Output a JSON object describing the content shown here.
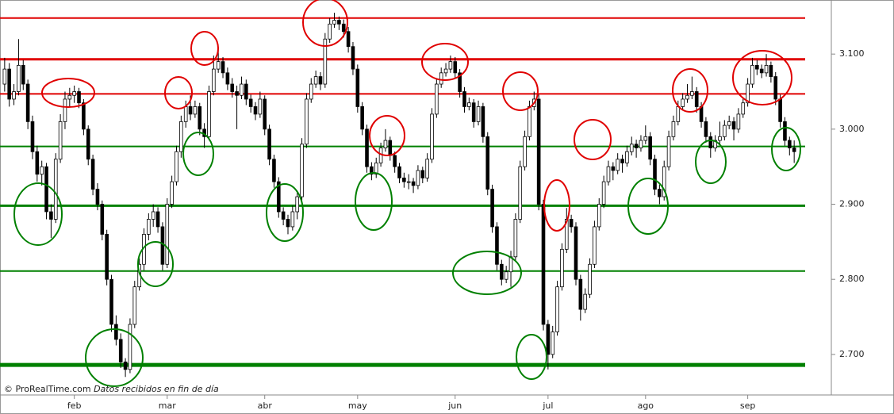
{
  "chart_data": {
    "type": "candlestick",
    "source": "© ProRealTime.com",
    "note": "Datos recibidos en fin de día",
    "xlim": [
      -1,
      178
    ],
    "xticks": [
      {
        "value": 15,
        "label": "feb"
      },
      {
        "value": 35,
        "label": "mar"
      },
      {
        "value": 56,
        "label": "abr"
      },
      {
        "value": 76,
        "label": "may"
      },
      {
        "value": 97,
        "label": "jun"
      },
      {
        "value": 117,
        "label": "jul"
      },
      {
        "value": 138,
        "label": "ago"
      },
      {
        "value": 160,
        "label": "sep"
      }
    ],
    "ylim": [
      2646,
      3172
    ],
    "yticks": [
      {
        "value": 2700,
        "label": "2.700"
      },
      {
        "value": 2800,
        "label": "2.800"
      },
      {
        "value": 2900,
        "label": "2.900"
      },
      {
        "value": 3000,
        "label": "3.000"
      },
      {
        "value": 3100,
        "label": "3.100"
      }
    ],
    "up_color": "#ffffff",
    "down_color": "#000000",
    "levels": [
      {
        "value": 3148,
        "color": "#e00000",
        "width": 2
      },
      {
        "value": 3093,
        "color": "#e00000",
        "width": 3
      },
      {
        "value": 3047,
        "color": "#e00000",
        "width": 2
      },
      {
        "value": 2977,
        "color": "#008000",
        "width": 2
      },
      {
        "value": 2898,
        "color": "#008000",
        "width": 3
      },
      {
        "value": 2811,
        "color": "#008000",
        "width": 2
      },
      {
        "value": 2686,
        "color": "#008000",
        "width": 5
      }
    ],
    "candles": [
      [
        3060,
        3095,
        3050,
        3080
      ],
      [
        3080,
        3088,
        3030,
        3040
      ],
      [
        3040,
        3060,
        3032,
        3050
      ],
      [
        3050,
        3120,
        3045,
        3085
      ],
      [
        3085,
        3092,
        3052,
        3060
      ],
      [
        3060,
        3066,
        3000,
        3010
      ],
      [
        3010,
        3018,
        2960,
        2970
      ],
      [
        2970,
        2978,
        2930,
        2940
      ],
      [
        2940,
        2958,
        2925,
        2950
      ],
      [
        2950,
        2955,
        2880,
        2890
      ],
      [
        2890,
        2900,
        2855,
        2880
      ],
      [
        2880,
        2968,
        2875,
        2960
      ],
      [
        2960,
        3020,
        2955,
        3010
      ],
      [
        3010,
        3050,
        3000,
        3040
      ],
      [
        3040,
        3055,
        3030,
        3045
      ],
      [
        3045,
        3058,
        3035,
        3050
      ],
      [
        3050,
        3055,
        3028,
        3035
      ],
      [
        3035,
        3040,
        2992,
        3000
      ],
      [
        3000,
        3005,
        2952,
        2960
      ],
      [
        2960,
        2966,
        2912,
        2920
      ],
      [
        2920,
        2928,
        2892,
        2900
      ],
      [
        2900,
        2905,
        2852,
        2860
      ],
      [
        2860,
        2866,
        2792,
        2800
      ],
      [
        2800,
        2806,
        2730,
        2740
      ],
      [
        2740,
        2752,
        2712,
        2720
      ],
      [
        2720,
        2728,
        2682,
        2690
      ],
      [
        2690,
        2695,
        2670,
        2680
      ],
      [
        2680,
        2748,
        2675,
        2740
      ],
      [
        2740,
        2798,
        2735,
        2790
      ],
      [
        2790,
        2828,
        2785,
        2820
      ],
      [
        2820,
        2868,
        2812,
        2860
      ],
      [
        2860,
        2888,
        2852,
        2880
      ],
      [
        2880,
        2900,
        2870,
        2890
      ],
      [
        2890,
        2896,
        2862,
        2870
      ],
      [
        2870,
        2876,
        2812,
        2820
      ],
      [
        2820,
        2908,
        2815,
        2900
      ],
      [
        2900,
        2938,
        2895,
        2930
      ],
      [
        2930,
        2978,
        2925,
        2970
      ],
      [
        2970,
        3018,
        2962,
        3010
      ],
      [
        3010,
        3038,
        3002,
        3030
      ],
      [
        3030,
        3045,
        3012,
        3020
      ],
      [
        3020,
        3038,
        3015,
        3030
      ],
      [
        3030,
        3035,
        2992,
        3000
      ],
      [
        3000,
        3008,
        2975,
        2990
      ],
      [
        2990,
        3058,
        2985,
        3050
      ],
      [
        3050,
        3098,
        3045,
        3080
      ],
      [
        3080,
        3110,
        3075,
        3090
      ],
      [
        3090,
        3096,
        3068,
        3075
      ],
      [
        3075,
        3082,
        3052,
        3060
      ],
      [
        3060,
        3068,
        3042,
        3050
      ],
      [
        3050,
        3058,
        3000,
        3045
      ],
      [
        3045,
        3070,
        3040,
        3060
      ],
      [
        3060,
        3066,
        3032,
        3040
      ],
      [
        3040,
        3046,
        3022,
        3030
      ],
      [
        3030,
        3036,
        3012,
        3020
      ],
      [
        3020,
        3050,
        3015,
        3040
      ],
      [
        3040,
        3045,
        2992,
        3000
      ],
      [
        3000,
        3006,
        2952,
        2960
      ],
      [
        2960,
        2966,
        2922,
        2930
      ],
      [
        2930,
        2936,
        2882,
        2890
      ],
      [
        2890,
        2896,
        2872,
        2880
      ],
      [
        2880,
        2886,
        2860,
        2870
      ],
      [
        2870,
        2898,
        2865,
        2890
      ],
      [
        2890,
        2918,
        2880,
        2910
      ],
      [
        2910,
        2988,
        2905,
        2980
      ],
      [
        2980,
        3048,
        2975,
        3040
      ],
      [
        3040,
        3068,
        3035,
        3060
      ],
      [
        3060,
        3078,
        3055,
        3070
      ],
      [
        3070,
        3076,
        3052,
        3060
      ],
      [
        3060,
        3128,
        3055,
        3120
      ],
      [
        3120,
        3148,
        3115,
        3140
      ],
      [
        3140,
        3155,
        3135,
        3145
      ],
      [
        3145,
        3150,
        3132,
        3140
      ],
      [
        3140,
        3146,
        3122,
        3130
      ],
      [
        3130,
        3136,
        3102,
        3110
      ],
      [
        3110,
        3116,
        3072,
        3080
      ],
      [
        3080,
        3086,
        3022,
        3030
      ],
      [
        3030,
        3036,
        2992,
        3000
      ],
      [
        3000,
        3006,
        2942,
        2950
      ],
      [
        2950,
        2956,
        2932,
        2940
      ],
      [
        2940,
        2962,
        2935,
        2955
      ],
      [
        2955,
        2982,
        2950,
        2975
      ],
      [
        2975,
        3000,
        2970,
        2985
      ],
      [
        2985,
        2990,
        2958,
        2965
      ],
      [
        2965,
        2970,
        2942,
        2950
      ],
      [
        2950,
        2955,
        2928,
        2935
      ],
      [
        2935,
        2942,
        2922,
        2930
      ],
      [
        2930,
        2940,
        2920,
        2930
      ],
      [
        2930,
        2935,
        2915,
        2925
      ],
      [
        2925,
        2952,
        2920,
        2945
      ],
      [
        2945,
        2950,
        2928,
        2935
      ],
      [
        2935,
        2968,
        2930,
        2960
      ],
      [
        2960,
        3028,
        2955,
        3020
      ],
      [
        3020,
        3068,
        3015,
        3060
      ],
      [
        3060,
        3082,
        3055,
        3075
      ],
      [
        3075,
        3088,
        3070,
        3080
      ],
      [
        3080,
        3098,
        3075,
        3090
      ],
      [
        3090,
        3096,
        3068,
        3075
      ],
      [
        3075,
        3080,
        3042,
        3050
      ],
      [
        3050,
        3056,
        3022,
        3030
      ],
      [
        3030,
        3042,
        3025,
        3035
      ],
      [
        3035,
        3040,
        3002,
        3010
      ],
      [
        3010,
        3038,
        3005,
        3030
      ],
      [
        3030,
        3035,
        2982,
        2990
      ],
      [
        2990,
        2996,
        2912,
        2920
      ],
      [
        2920,
        2926,
        2862,
        2870
      ],
      [
        2870,
        2876,
        2812,
        2820
      ],
      [
        2820,
        2826,
        2792,
        2800
      ],
      [
        2800,
        2818,
        2795,
        2810
      ],
      [
        2810,
        2838,
        2790,
        2830
      ],
      [
        2830,
        2888,
        2825,
        2880
      ],
      [
        2880,
        2958,
        2875,
        2950
      ],
      [
        2950,
        2998,
        2945,
        2990
      ],
      [
        2990,
        3038,
        2985,
        3030
      ],
      [
        3030,
        3050,
        3025,
        3040
      ],
      [
        3040,
        3046,
        2892,
        2900
      ],
      [
        2900,
        2906,
        2732,
        2740
      ],
      [
        2740,
        2746,
        2680,
        2700
      ],
      [
        2700,
        2738,
        2695,
        2730
      ],
      [
        2730,
        2798,
        2725,
        2790
      ],
      [
        2790,
        2848,
        2785,
        2840
      ],
      [
        2840,
        2895,
        2835,
        2880
      ],
      [
        2880,
        2886,
        2862,
        2870
      ],
      [
        2870,
        2876,
        2792,
        2800
      ],
      [
        2800,
        2806,
        2745,
        2760
      ],
      [
        2760,
        2788,
        2755,
        2780
      ],
      [
        2780,
        2828,
        2775,
        2820
      ],
      [
        2820,
        2878,
        2815,
        2870
      ],
      [
        2870,
        2908,
        2865,
        2900
      ],
      [
        2900,
        2938,
        2895,
        2930
      ],
      [
        2930,
        2958,
        2925,
        2950
      ],
      [
        2950,
        2956,
        2932,
        2945
      ],
      [
        2945,
        2968,
        2940,
        2960
      ],
      [
        2960,
        2966,
        2942,
        2955
      ],
      [
        2955,
        2978,
        2950,
        2970
      ],
      [
        2970,
        2990,
        2965,
        2980
      ],
      [
        2980,
        2986,
        2962,
        2975
      ],
      [
        2975,
        2992,
        2970,
        2985
      ],
      [
        2985,
        3005,
        2980,
        2990
      ],
      [
        2990,
        2996,
        2952,
        2960
      ],
      [
        2960,
        2966,
        2912,
        2920
      ],
      [
        2920,
        2926,
        2900,
        2910
      ],
      [
        2910,
        2958,
        2905,
        2950
      ],
      [
        2950,
        2998,
        2945,
        2990
      ],
      [
        2990,
        3018,
        2985,
        3010
      ],
      [
        3010,
        3038,
        3005,
        3030
      ],
      [
        3030,
        3048,
        3025,
        3040
      ],
      [
        3040,
        3060,
        3035,
        3045
      ],
      [
        3045,
        3070,
        3040,
        3050
      ],
      [
        3050,
        3056,
        3022,
        3030
      ],
      [
        3030,
        3036,
        3002,
        3010
      ],
      [
        3010,
        3016,
        2982,
        2990
      ],
      [
        2990,
        2996,
        2962,
        2975
      ],
      [
        2975,
        2992,
        2970,
        2985
      ],
      [
        2985,
        3010,
        2980,
        2990
      ],
      [
        2990,
        3012,
        2985,
        3005
      ],
      [
        3005,
        3018,
        3000,
        3010
      ],
      [
        3010,
        3016,
        2985,
        3000
      ],
      [
        3000,
        3028,
        2995,
        3020
      ],
      [
        3020,
        3042,
        3015,
        3035
      ],
      [
        3035,
        3068,
        3030,
        3060
      ],
      [
        3060,
        3095,
        3055,
        3085
      ],
      [
        3085,
        3092,
        3072,
        3080
      ],
      [
        3080,
        3086,
        3068,
        3075
      ],
      [
        3075,
        3100,
        3070,
        3085
      ],
      [
        3085,
        3090,
        3062,
        3070
      ],
      [
        3070,
        3076,
        3032,
        3040
      ],
      [
        3040,
        3046,
        3002,
        3010
      ],
      [
        3010,
        3016,
        2978,
        2985
      ],
      [
        2985,
        2990,
        2965,
        2975
      ],
      [
        2975,
        2985,
        2955,
        2970
      ]
    ]
  }
}
